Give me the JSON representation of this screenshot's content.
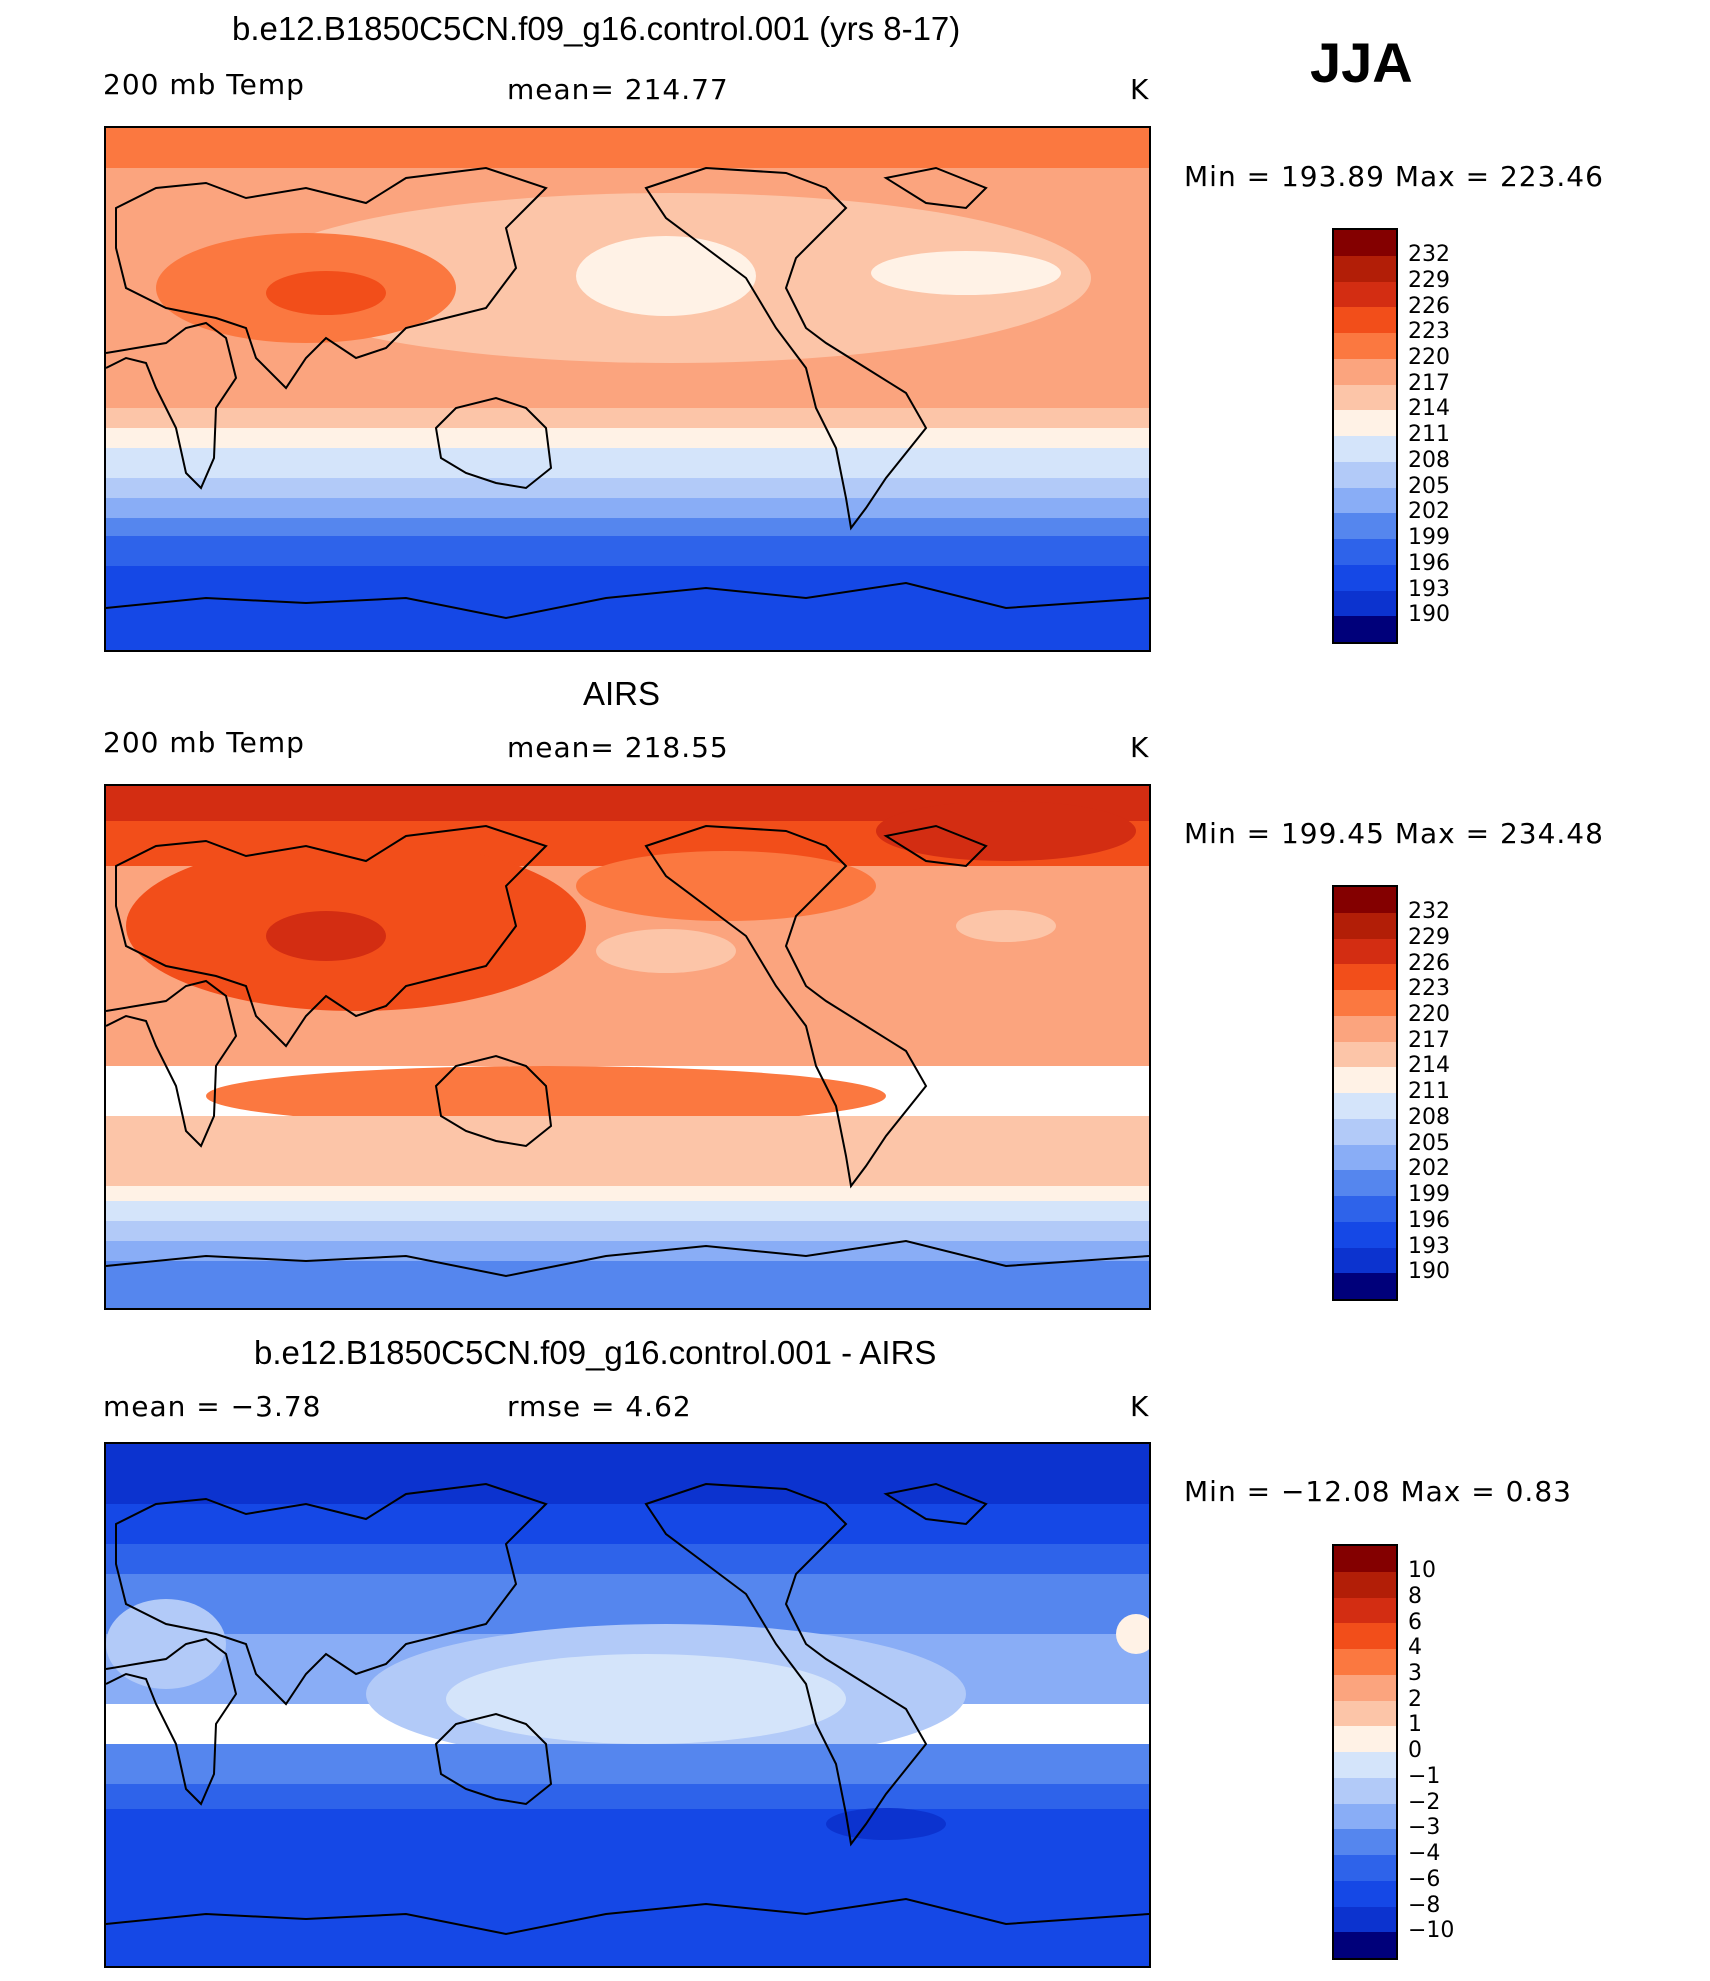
{
  "season": "JJA",
  "palette": {
    "c1": "#00007a",
    "c2": "#0a1fa0",
    "c3": "#0c33cf",
    "c4": "#1548e6",
    "c5": "#2e63ea",
    "c6": "#5586ee",
    "c7": "#89adf6",
    "c8": "#b2caf8",
    "c9": "#d4e4fa",
    "c10": "#fff2e6",
    "c11": "#fcc5a8",
    "c12": "#fba47e",
    "c13": "#fb7840",
    "c14": "#f24e1a",
    "c15": "#d32d12",
    "c16": "#b21e07",
    "c17": "#840000"
  },
  "panels": [
    {
      "title": "b.e12.B1850C5CN.f09_g16.control.001 (yrs 8-17)",
      "left": "200 mb Temp",
      "center": "mean=  214.77",
      "unit": "K",
      "stats": "Min  =  193.89  Max  =  223.46",
      "colorbar_labels": [
        "232",
        "229",
        "226",
        "223",
        "220",
        "217",
        "214",
        "211",
        "208",
        "205",
        "202",
        "199",
        "196",
        "193",
        "190"
      ]
    },
    {
      "title": "AIRS",
      "left": "200 mb Temp",
      "center": "mean=  218.55",
      "unit": "K",
      "stats": "Min  =  199.45  Max  =  234.48",
      "colorbar_labels": [
        "232",
        "229",
        "226",
        "223",
        "220",
        "217",
        "214",
        "211",
        "208",
        "205",
        "202",
        "199",
        "196",
        "193",
        "190"
      ]
    },
    {
      "title": "b.e12.B1850C5CN.f09_g16.control.001 - AIRS",
      "left": "mean  =    −3.78",
      "center": "rmse  =     4.62",
      "unit": "K",
      "stats": "Min  =  −12.08  Max  =      0.83",
      "colorbar_labels": [
        "10",
        "8",
        "6",
        "4",
        "3",
        "2",
        "1",
        "0",
        "−1",
        "−2",
        "−3",
        "−4",
        "−6",
        "−8",
        "−10"
      ]
    }
  ]
}
